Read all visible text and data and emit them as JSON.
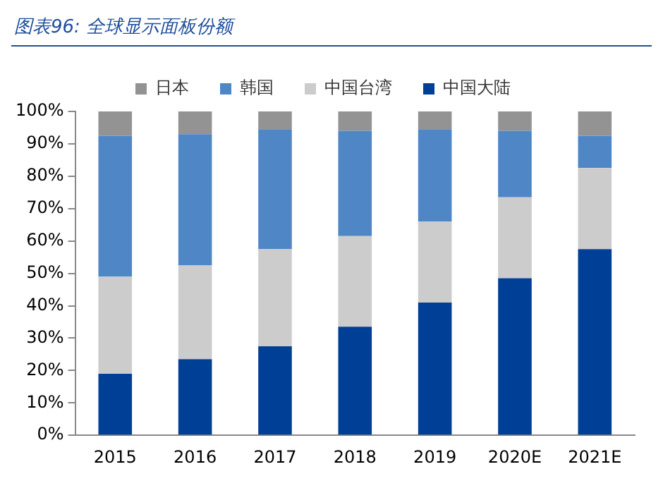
{
  "chart_data": {
    "type": "bar",
    "title": "图表96:  全球显示面板份额",
    "stacked": true,
    "legend": "top",
    "grid": false,
    "categories": [
      "2015",
      "2016",
      "2017",
      "2018",
      "2019",
      "2020E",
      "2021E"
    ],
    "series": [
      {
        "name": "中国大陆",
        "color": "#003f96",
        "values": [
          19,
          23.5,
          27.5,
          33.5,
          41,
          48.5,
          57.5
        ]
      },
      {
        "name": "中国台湾",
        "color": "#cccccc",
        "values": [
          30,
          29,
          30,
          28,
          25,
          25,
          25
        ]
      },
      {
        "name": "韩国",
        "color": "#4f86c6",
        "values": [
          43.5,
          40.5,
          37,
          32.5,
          28.5,
          20.5,
          10
        ]
      },
      {
        "name": "日本",
        "color": "#939393",
        "values": [
          7.5,
          7,
          5.5,
          6,
          5.5,
          6,
          7.5
        ]
      }
    ],
    "ylim": [
      0,
      100
    ],
    "yticks": [
      {
        "value": 0,
        "label": "0%"
      },
      {
        "value": 10,
        "label": "10%"
      },
      {
        "value": 20,
        "label": "20%"
      },
      {
        "value": 30,
        "label": "30%"
      },
      {
        "value": 40,
        "label": "40%"
      },
      {
        "value": 50,
        "label": "50%"
      },
      {
        "value": 60,
        "label": "60%"
      },
      {
        "value": 70,
        "label": "70%"
      },
      {
        "value": 80,
        "label": "80%"
      },
      {
        "value": 90,
        "label": "90%"
      },
      {
        "value": 100,
        "label": "100%"
      }
    ]
  }
}
